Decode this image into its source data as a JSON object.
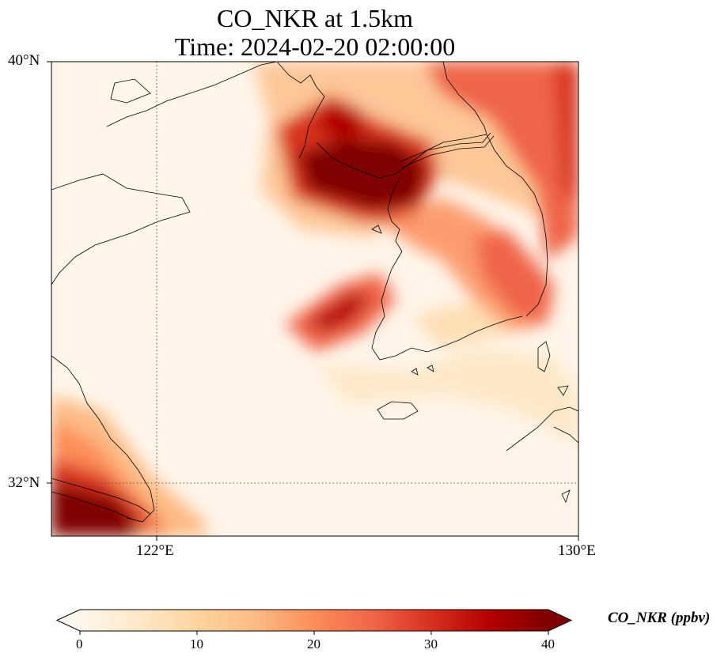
{
  "title": {
    "line1": "CO_NKR at 1.5km",
    "line2": "Time: 2024-02-20 02:00:00"
  },
  "map": {
    "variable": "CO_NKR",
    "level": "1.5km",
    "time": "2024-02-20 02:00:00",
    "extent": {
      "lon_min": 120,
      "lon_max": 130,
      "lat_min": 31,
      "lat_max": 40
    },
    "gridlines": {
      "lon": [
        122
      ],
      "lat": [
        32
      ],
      "style": "dotted"
    },
    "lat_ticks": [
      "40°N",
      "32°N"
    ],
    "lon_ticks": [
      "122°E",
      "130°E"
    ],
    "colormap": "OrRd",
    "colors": [
      "#fff7ec",
      "#fee8c8",
      "#fdd49e",
      "#fdbb84",
      "#fc8d59",
      "#ef6548",
      "#d7301f",
      "#b30000",
      "#7f0000"
    ]
  },
  "colorbar": {
    "label": "CO_NKR (ppbv)",
    "ticks": [
      "0",
      "10",
      "20",
      "30",
      "40"
    ],
    "min": 0,
    "max": 40,
    "extend": "both"
  }
}
